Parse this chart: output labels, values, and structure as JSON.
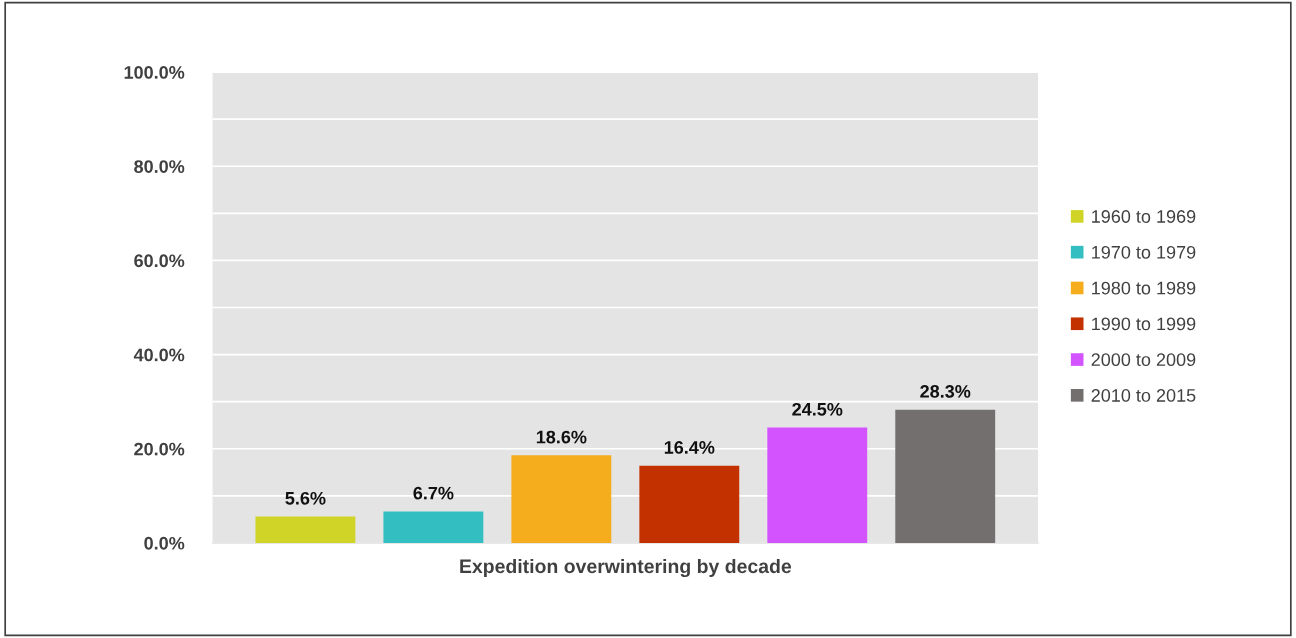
{
  "chart_data": {
    "type": "bar",
    "xlabel": "Expedition overwintering by decade",
    "categories": [
      null
    ],
    "series": [
      {
        "name": "1960 to 1969",
        "color": "#d0d427",
        "values": [
          5.6
        ],
        "value_labels": [
          "5.6%"
        ]
      },
      {
        "name": "1970 to 1979",
        "color": "#33bfc1",
        "values": [
          6.7
        ],
        "value_labels": [
          "6.7%"
        ]
      },
      {
        "name": "1980 to 1989",
        "color": "#f5ad1e",
        "values": [
          18.6
        ],
        "value_labels": [
          "18.6%"
        ]
      },
      {
        "name": "1990 to 1999",
        "color": "#c43100",
        "values": [
          16.4
        ],
        "value_labels": [
          "16.4%"
        ]
      },
      {
        "name": "2000 to 2009",
        "color": "#d354ff",
        "values": [
          24.5
        ],
        "value_labels": [
          "24.5%"
        ]
      },
      {
        "name": "2010 to 2015",
        "color": "#736f6e",
        "values": [
          28.3
        ],
        "value_labels": [
          "28.3%"
        ]
      }
    ],
    "ylim": [
      0,
      100
    ],
    "yticks": [
      {
        "value": 0,
        "label": "0.0%"
      },
      {
        "value": 10,
        "label": null
      },
      {
        "value": 20,
        "label": "20.0%"
      },
      {
        "value": 30,
        "label": null
      },
      {
        "value": 40,
        "label": "40.0%"
      },
      {
        "value": 50,
        "label": null
      },
      {
        "value": 60,
        "label": "60.0%"
      },
      {
        "value": 70,
        "label": null
      },
      {
        "value": 80,
        "label": "80.0%"
      },
      {
        "value": 90,
        "label": null
      },
      {
        "value": 100,
        "label": "100.0%"
      }
    ],
    "grid": "y",
    "legend": "right"
  }
}
